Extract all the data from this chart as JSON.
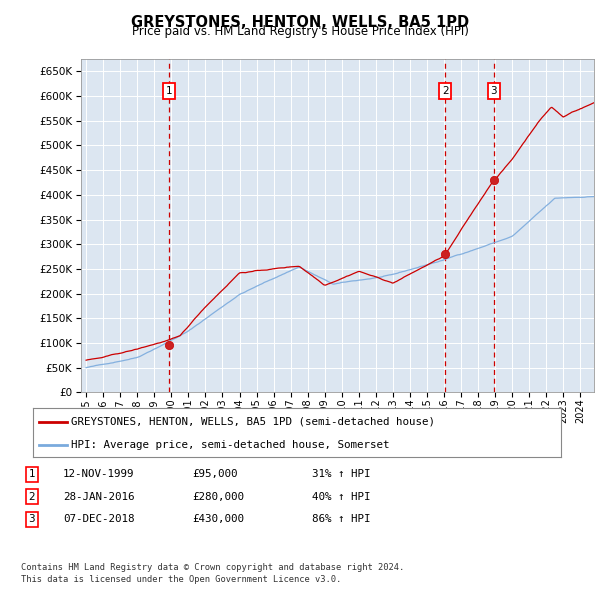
{
  "title": "GREYSTONES, HENTON, WELLS, BA5 1PD",
  "subtitle": "Price paid vs. HM Land Registry's House Price Index (HPI)",
  "background_color": "#ffffff",
  "plot_bg_color": "#dce6f1",
  "hpi_color": "#7aaadd",
  "price_color": "#cc0000",
  "vline_color": "#cc0000",
  "ylim": [
    0,
    675000
  ],
  "yticks": [
    0,
    50000,
    100000,
    150000,
    200000,
    250000,
    300000,
    350000,
    400000,
    450000,
    500000,
    550000,
    600000,
    650000
  ],
  "sales": [
    {
      "date_num": 1999.87,
      "price": 95000,
      "label": "1"
    },
    {
      "date_num": 2016.07,
      "price": 280000,
      "label": "2"
    },
    {
      "date_num": 2018.93,
      "price": 430000,
      "label": "3"
    }
  ],
  "legend_entries": [
    "GREYSTONES, HENTON, WELLS, BA5 1PD (semi-detached house)",
    "HPI: Average price, semi-detached house, Somerset"
  ],
  "table_rows": [
    {
      "label": "1",
      "date": "12-NOV-1999",
      "price": "£95,000",
      "change": "31% ↑ HPI"
    },
    {
      "label": "2",
      "date": "28-JAN-2016",
      "price": "£280,000",
      "change": "40% ↑ HPI"
    },
    {
      "label": "3",
      "date": "07-DEC-2018",
      "price": "£430,000",
      "change": "86% ↑ HPI"
    }
  ],
  "footer": "Contains HM Land Registry data © Crown copyright and database right 2024.\nThis data is licensed under the Open Government Licence v3.0.",
  "xlim_start": 1994.7,
  "xlim_end": 2024.8
}
